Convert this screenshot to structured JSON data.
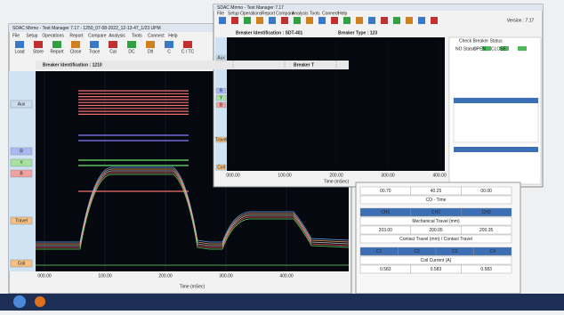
{
  "back_window": {
    "title": "SDAC Mirmo - Test Manager 7.17 - 1250_07-08-2022_12-13-47_1/23 UPM",
    "menu": [
      "File",
      "Setup",
      "Operations",
      "Report",
      "Compare",
      "Analysis",
      "Tools",
      "Connect",
      "Help"
    ],
    "toolbar": [
      "Load",
      "Store",
      "Report",
      "Close",
      "Trace",
      "Cal",
      "DC",
      "Dtl",
      "C",
      "C / TC"
    ],
    "breaker_id": "Breaker Identification : 1210",
    "breaker_type": "Breaker T",
    "side_buttons": [
      "Aux",
      "R",
      "Y",
      "B",
      "Travel",
      "Coil"
    ],
    "x_axis_labels": [
      "000.00",
      "100.00",
      "200.00",
      "300.00",
      "400.00"
    ],
    "x_axis_title": "Time (mSec)"
  },
  "front_window": {
    "title": "SDAC Mirmo - Test Manager 7.17",
    "menu": [
      "File",
      "Setup",
      "Operations",
      "Report",
      "Compare",
      "Analysis",
      "Tools",
      "Connect",
      "Help"
    ],
    "version": "Version : 7.17",
    "breaker_id": "Breaker Identification : SDT-401",
    "breaker_type": "Breaker Type : 123",
    "side_buttons": [
      "Aux",
      "R",
      "Y",
      "B",
      "Travel",
      "Coil"
    ],
    "x_axis_labels": [
      "000.00",
      "100.00",
      "200.00",
      "300.00",
      "400.00"
    ],
    "x_axis_title": "Time (mSec)",
    "status_title": "Check Breaker Status",
    "status_labels": [
      "NO Status",
      "OPEN",
      "CLOSE"
    ]
  },
  "results_table": {
    "rows": [
      [
        "00.70",
        "40.25",
        "00.00"
      ],
      [
        "CO - Time"
      ],
      [
        "CH1",
        "CH2",
        "CH3"
      ],
      [
        "Mechanical Travel (mm)"
      ],
      [
        "203.00",
        "200.05",
        "200.35"
      ],
      [
        "Contact Travel (mm) / Contact Travel"
      ],
      [
        "C1",
        "C2",
        "C3",
        "C4"
      ],
      [
        "Coil Current (A)"
      ],
      [
        "0.583",
        "0.583",
        "0.583"
      ]
    ]
  }
}
